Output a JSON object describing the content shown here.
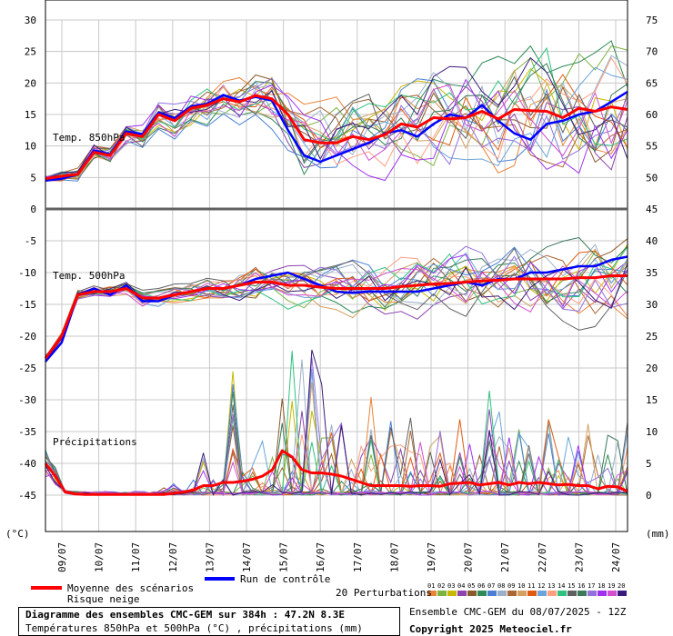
{
  "chart_data": {
    "type": "line",
    "grid": true,
    "x_dates": [
      "09/07",
      "10/07",
      "11/07",
      "12/07",
      "13/07",
      "14/07",
      "15/07",
      "16/07",
      "17/07",
      "18/07",
      "19/07",
      "20/07",
      "21/07",
      "22/07",
      "23/07",
      "24/07"
    ],
    "left_unit": "(°C)",
    "right_unit": "(mm)",
    "panel_850": {
      "label": "Temp. 850hPa",
      "ylim": [
        0,
        30
      ],
      "left_ticks": [
        "0",
        "5",
        "10",
        "15",
        "20",
        "25",
        "30"
      ],
      "right_ticks": [
        "45",
        "50",
        "55",
        "60",
        "65",
        "70",
        "75"
      ],
      "mean": [
        4.8,
        5.2,
        5.5,
        9,
        8.5,
        12,
        11.5,
        15,
        14,
        16,
        16.5,
        17.5,
        17,
        18,
        17.5,
        15,
        11,
        10.5,
        10.5,
        11.5,
        11,
        11.8,
        13.5,
        13,
        14.5,
        14.3,
        14.5,
        15.5,
        14.3,
        15.8,
        15.6,
        15.5,
        14.5,
        16,
        15.5,
        16.2,
        15.8
      ],
      "control": [
        4.5,
        4.8,
        5.5,
        9.3,
        8.7,
        12.3,
        11.9,
        15.3,
        14.4,
        16.3,
        16.7,
        18.1,
        17.2,
        17.8,
        17.2,
        12.5,
        8.5,
        7.5,
        8.5,
        9.5,
        10.5,
        12,
        12.5,
        11.5,
        13.5,
        15,
        14.5,
        16.5,
        14,
        12,
        11,
        13.5,
        14,
        15,
        15.5,
        17,
        18.6
      ]
    },
    "panel_500": {
      "label": "Temp. 500hPa",
      "ylim": [
        -45,
        -5
      ],
      "left_ticks": [
        "-5",
        "-10",
        "-15",
        "-20",
        "-25",
        "-30",
        "-35",
        "-40",
        "-45"
      ],
      "right_ticks": [
        "40",
        "35",
        "30",
        "25",
        "20",
        "15",
        "10",
        "5",
        "0"
      ],
      "mean": [
        -23.5,
        -20,
        -13.5,
        -13,
        -13,
        -12.5,
        -14,
        -14,
        -13.5,
        -13,
        -12.5,
        -12.5,
        -12,
        -11.5,
        -11.5,
        -12,
        -12,
        -12.3,
        -12.5,
        -12.5,
        -12.5,
        -12.5,
        -12.2,
        -12,
        -11.8,
        -11.7,
        -11.5,
        -11.3,
        -11.2,
        -11,
        -11,
        -11,
        -11,
        -10.8,
        -10.8,
        -10.5,
        -10.5
      ],
      "control": [
        -24,
        -21,
        -13.5,
        -12.5,
        -13.5,
        -12,
        -14.5,
        -14.5,
        -13.5,
        -13,
        -12.5,
        -12.5,
        -12,
        -11,
        -10.5,
        -10,
        -11,
        -12,
        -13,
        -13.2,
        -13,
        -13,
        -13,
        -13,
        -12.5,
        -12,
        -11.5,
        -12,
        -11,
        -11,
        -10,
        -10,
        -9.5,
        -9,
        -9,
        -8,
        -7.5
      ]
    },
    "precip": {
      "label": "Précipitations",
      "mean_mm": [
        5,
        3,
        0.5,
        0.2,
        0.1,
        0.1,
        0.1,
        0.1,
        0.1,
        0.1,
        0.1,
        0.1,
        0.1,
        0.3,
        0.5,
        0.8,
        1.5,
        1.5,
        2,
        2,
        2.2,
        2.5,
        3,
        4,
        7,
        6,
        4,
        3.5,
        3.5,
        3.3,
        3,
        2.5,
        2,
        1.5,
        1.5,
        1.5,
        1.5,
        1.4,
        1.5,
        1.5,
        1.4,
        1.8,
        1.9,
        2,
        1.6,
        1.8,
        2,
        1.6,
        2,
        1.8,
        2,
        1.8,
        1.6,
        1.7,
        1.5,
        1.5,
        1,
        1.4,
        1.3,
        0.6
      ],
      "max_mm": [
        8,
        5,
        3,
        0.5,
        0.3,
        0.3,
        0.3,
        0.3,
        0.3,
        0.3,
        0.3,
        0.3,
        1.5,
        2,
        1,
        3,
        7,
        2.5,
        3,
        20.5,
        4,
        5,
        10,
        6,
        26,
        27,
        25,
        24,
        17.5,
        12,
        14,
        11,
        8,
        16,
        9,
        15,
        8,
        16,
        9,
        8,
        11.5,
        5,
        12,
        13,
        8,
        19,
        16.5,
        11,
        13,
        10,
        9.5,
        14.5,
        11,
        11.5,
        10,
        15,
        6.5,
        15.5,
        9,
        11.5
      ]
    },
    "legend": {
      "mean_label": "Moyenne des scénarios",
      "snow_label": "Risque neige",
      "control_label": "Run de contrôle",
      "perturbations_label": "20 Perturbations",
      "perturbation_ids": [
        "01",
        "02",
        "03",
        "04",
        "05",
        "06",
        "07",
        "08",
        "09",
        "10",
        "11",
        "12",
        "13",
        "14",
        "15",
        "16",
        "17",
        "18",
        "19",
        "20"
      ],
      "perturbation_colors": [
        "#e8843a",
        "#7db341",
        "#c9b800",
        "#8e44ad",
        "#8b5a2b",
        "#2e8b57",
        "#4a7fd4",
        "#9ab0c8",
        "#aa6633",
        "#d2a060",
        "#e05a10",
        "#6aa4d8",
        "#ff9f80",
        "#2ec27e",
        "#606060",
        "#3a7a5a",
        "#9370db",
        "#a030f0",
        "#d050d0",
        "#3a1a7a"
      ]
    },
    "colors": {
      "mean": "#ff0000",
      "control": "#0000ff",
      "grid": "#c8c8c8"
    }
  },
  "footer": {
    "title": "Diagramme des ensembles CMC-GEM sur 384h : 47.2N 8.3E",
    "subtitle": "Températures 850hPa et 500hPa (°C) , précipitations (mm)",
    "run_info": "Ensemble CMC-GEM du 08/07/2025 - 12Z",
    "copyright": "Copyright 2025 Meteociel.fr"
  }
}
